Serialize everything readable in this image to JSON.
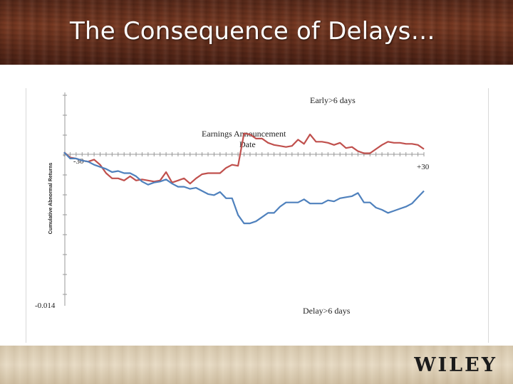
{
  "slide": {
    "title": "The Consequence of Delays…",
    "publisher": "WILEY"
  },
  "chart_data": {
    "type": "line",
    "title": "",
    "ylabel": "Cumulative Abnormal Returns",
    "xlabel": "",
    "x_range": [
      -30,
      30
    ],
    "ylim": [
      -0.014,
      0.005
    ],
    "x_tick_labels": {
      "start": "-30",
      "end": "+30"
    },
    "y_min_label": "-0.014",
    "annotation": [
      "Earnings Announcement",
      "Date"
    ],
    "x": [
      -30,
      -29,
      -28,
      -27,
      -26,
      -25,
      -24,
      -23,
      -22,
      -21,
      -20,
      -19,
      -18,
      -17,
      -16,
      -15,
      -14,
      -13,
      -12,
      -11,
      -10,
      -9,
      -8,
      -7,
      -6,
      -5,
      -4,
      -3,
      -2,
      -1,
      0,
      1,
      2,
      3,
      4,
      5,
      6,
      7,
      8,
      9,
      10,
      11,
      12,
      13,
      14,
      15,
      16,
      17,
      18,
      19,
      20,
      21,
      22,
      23,
      24,
      25,
      26,
      27,
      28,
      29,
      30
    ],
    "series": [
      {
        "name": "Early>6 days",
        "color": "#c0504d",
        "values": [
          0.0002,
          -0.0003,
          -0.0004,
          -0.0006,
          -0.0007,
          -0.0005,
          -0.001,
          -0.0018,
          -0.0023,
          -0.0023,
          -0.0025,
          -0.0021,
          -0.0025,
          -0.0024,
          -0.0025,
          -0.0026,
          -0.0025,
          -0.0017,
          -0.0027,
          -0.0025,
          -0.0023,
          -0.0028,
          -0.0023,
          -0.0019,
          -0.0018,
          -0.0018,
          -0.0018,
          -0.0013,
          -0.001,
          -0.0011,
          0.002,
          0.0019,
          0.0015,
          0.0015,
          0.0011,
          0.0009,
          0.0008,
          0.0007,
          0.0008,
          0.0014,
          0.001,
          0.0019,
          0.0012,
          0.0012,
          0.0011,
          0.0009,
          0.0011,
          0.0006,
          0.0007,
          0.0003,
          0.0001,
          0.0001,
          0.0005,
          0.0009,
          0.0012,
          0.0011,
          0.0011,
          0.001,
          0.001,
          0.0009,
          0.0005
        ]
      },
      {
        "name": "Delay>6 days",
        "color": "#4f81bd",
        "values": [
          0.0002,
          -0.0004,
          -0.0004,
          -0.0006,
          -0.0007,
          -0.001,
          -0.0012,
          -0.0014,
          -0.0017,
          -0.0016,
          -0.0018,
          -0.0018,
          -0.0021,
          -0.0026,
          -0.0029,
          -0.0027,
          -0.0026,
          -0.0024,
          -0.0028,
          -0.0031,
          -0.0031,
          -0.0033,
          -0.0032,
          -0.0035,
          -0.0038,
          -0.0039,
          -0.0036,
          -0.0042,
          -0.0042,
          -0.0058,
          -0.0066,
          -0.0066,
          -0.0064,
          -0.006,
          -0.0056,
          -0.0056,
          -0.005,
          -0.0046,
          -0.0046,
          -0.0046,
          -0.0043,
          -0.0047,
          -0.0047,
          -0.0047,
          -0.0044,
          -0.0045,
          -0.0042,
          -0.0041,
          -0.004,
          -0.0037,
          -0.0046,
          -0.0046,
          -0.0051,
          -0.0053,
          -0.0056,
          -0.0054,
          -0.0052,
          -0.005,
          -0.0047,
          -0.0041,
          -0.0035
        ]
      }
    ],
    "grid": false,
    "legend": "inline labels near each series"
  }
}
